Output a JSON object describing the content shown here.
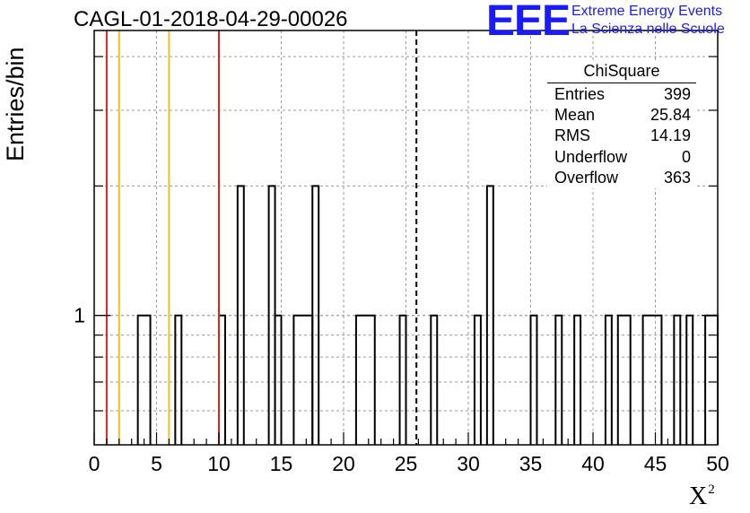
{
  "title": "CAGL-01-2018-04-29-00026",
  "logo": {
    "mark": "EEE",
    "line1": "Extreme Energy Events",
    "line2": "La Scienza nelle Scuole",
    "color": "#1a1aff"
  },
  "stats": {
    "title": "ChiSquare",
    "rows": [
      {
        "label": "Entries",
        "value": "399"
      },
      {
        "label": "Mean",
        "value": "25.84"
      },
      {
        "label": "RMS",
        "value": "14.19"
      },
      {
        "label": "Underflow",
        "value": "0"
      },
      {
        "label": "Overflow",
        "value": "363"
      }
    ]
  },
  "chart_data": {
    "type": "histogram",
    "xlabel": "X",
    "xlabel_sup": "2",
    "ylabel": "Entries/bin",
    "xlim": [
      0,
      50
    ],
    "ylim": [
      0.5,
      4.6
    ],
    "y_scale": "log",
    "grid": true,
    "bin_width": 1,
    "x_ticks": [
      0,
      5,
      10,
      15,
      20,
      25,
      30,
      35,
      40,
      45,
      50
    ],
    "y_tick_labels": [
      {
        "value": 1,
        "label": "1"
      }
    ],
    "bins": [
      {
        "x0": 3.5,
        "x1": 4.5,
        "count": 1
      },
      {
        "x0": 6.5,
        "x1": 7,
        "count": 1
      },
      {
        "x0": 10,
        "x1": 10.5,
        "count": 1
      },
      {
        "x0": 11.5,
        "x1": 12,
        "count": 2
      },
      {
        "x0": 14,
        "x1": 14.5,
        "count": 2
      },
      {
        "x0": 14.5,
        "x1": 15,
        "count": 1
      },
      {
        "x0": 16,
        "x1": 17.5,
        "count": 1
      },
      {
        "x0": 17.5,
        "x1": 18,
        "count": 2
      },
      {
        "x0": 21,
        "x1": 22.5,
        "count": 1
      },
      {
        "x0": 24.5,
        "x1": 25,
        "count": 1
      },
      {
        "x0": 27,
        "x1": 27.5,
        "count": 1
      },
      {
        "x0": 30.5,
        "x1": 31,
        "count": 1
      },
      {
        "x0": 31.5,
        "x1": 32,
        "count": 2
      },
      {
        "x0": 35,
        "x1": 35.5,
        "count": 1
      },
      {
        "x0": 37,
        "x1": 37.5,
        "count": 1
      },
      {
        "x0": 38.5,
        "x1": 39,
        "count": 1
      },
      {
        "x0": 41,
        "x1": 41.5,
        "count": 1
      },
      {
        "x0": 42,
        "x1": 43,
        "count": 1
      },
      {
        "x0": 44,
        "x1": 45.5,
        "count": 1
      },
      {
        "x0": 46.5,
        "x1": 47,
        "count": 1
      },
      {
        "x0": 47.5,
        "x1": 48,
        "count": 1
      },
      {
        "x0": 49,
        "x1": 50,
        "count": 1
      }
    ],
    "reference_lines": [
      {
        "x": 1,
        "color": "#dd2222",
        "style": "solid"
      },
      {
        "x": 2,
        "color": "#f0c020",
        "style": "solid"
      },
      {
        "x": 6,
        "color": "#f0c020",
        "style": "solid"
      },
      {
        "x": 10,
        "color": "#dd2222",
        "style": "solid"
      },
      {
        "x": 25.84,
        "color": "#000000",
        "style": "dashed"
      }
    ]
  }
}
